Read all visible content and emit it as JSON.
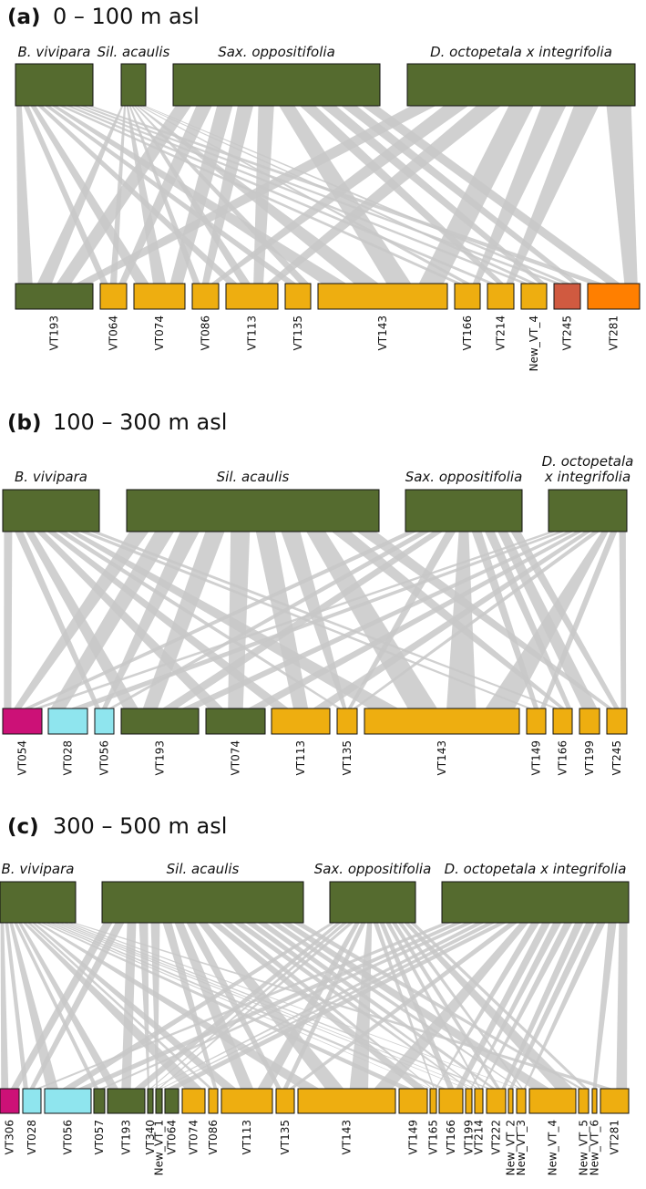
{
  "panels": [
    {
      "letter": "(a)",
      "title": "0 – 100 m asl",
      "top": [
        "B. vivipara",
        "Sil. acaulis",
        "Sax. oppositifolia",
        "D. octopetala x integrifolia"
      ],
      "bottom": [
        "VT193",
        "VT064",
        "VT074",
        "VT086",
        "VT113",
        "VT135",
        "VT143",
        "VT166",
        "VT214",
        "New_VT_4",
        "VT245",
        "VT281"
      ]
    },
    {
      "letter": "(b)",
      "title": "100 – 300 m asl",
      "top": [
        "B. vivipara",
        "Sil. acaulis",
        "Sax. oppositifolia",
        [
          "D. octopetala",
          "x integrifolia"
        ]
      ],
      "bottom": [
        "VT054",
        "VT028",
        "VT056",
        "VT193",
        "VT074",
        "VT113",
        "VT135",
        "VT143",
        "VT149",
        "VT166",
        "VT199",
        "VT245"
      ]
    },
    {
      "letter": "(c)",
      "title": "300 – 500 m asl",
      "top": [
        "B. vivipara",
        "Sil. acaulis",
        "Sax. oppositifolia",
        "D. octopetala x integrifolia"
      ],
      "bottom": [
        "VT306",
        "VT028",
        "VT056",
        "VT057",
        "VT193",
        "VT340",
        "New_VT_1",
        "VT064",
        "VT074",
        "VT086",
        "VT113",
        "VT135",
        "VT143",
        "VT149",
        "VT165",
        "VT166",
        "VT199",
        "VT214",
        "VT222",
        "New_VT_2",
        "New_VT_3",
        "New_VT_4",
        "New_VT_5",
        "New_VT_6",
        "VT281"
      ]
    }
  ]
}
